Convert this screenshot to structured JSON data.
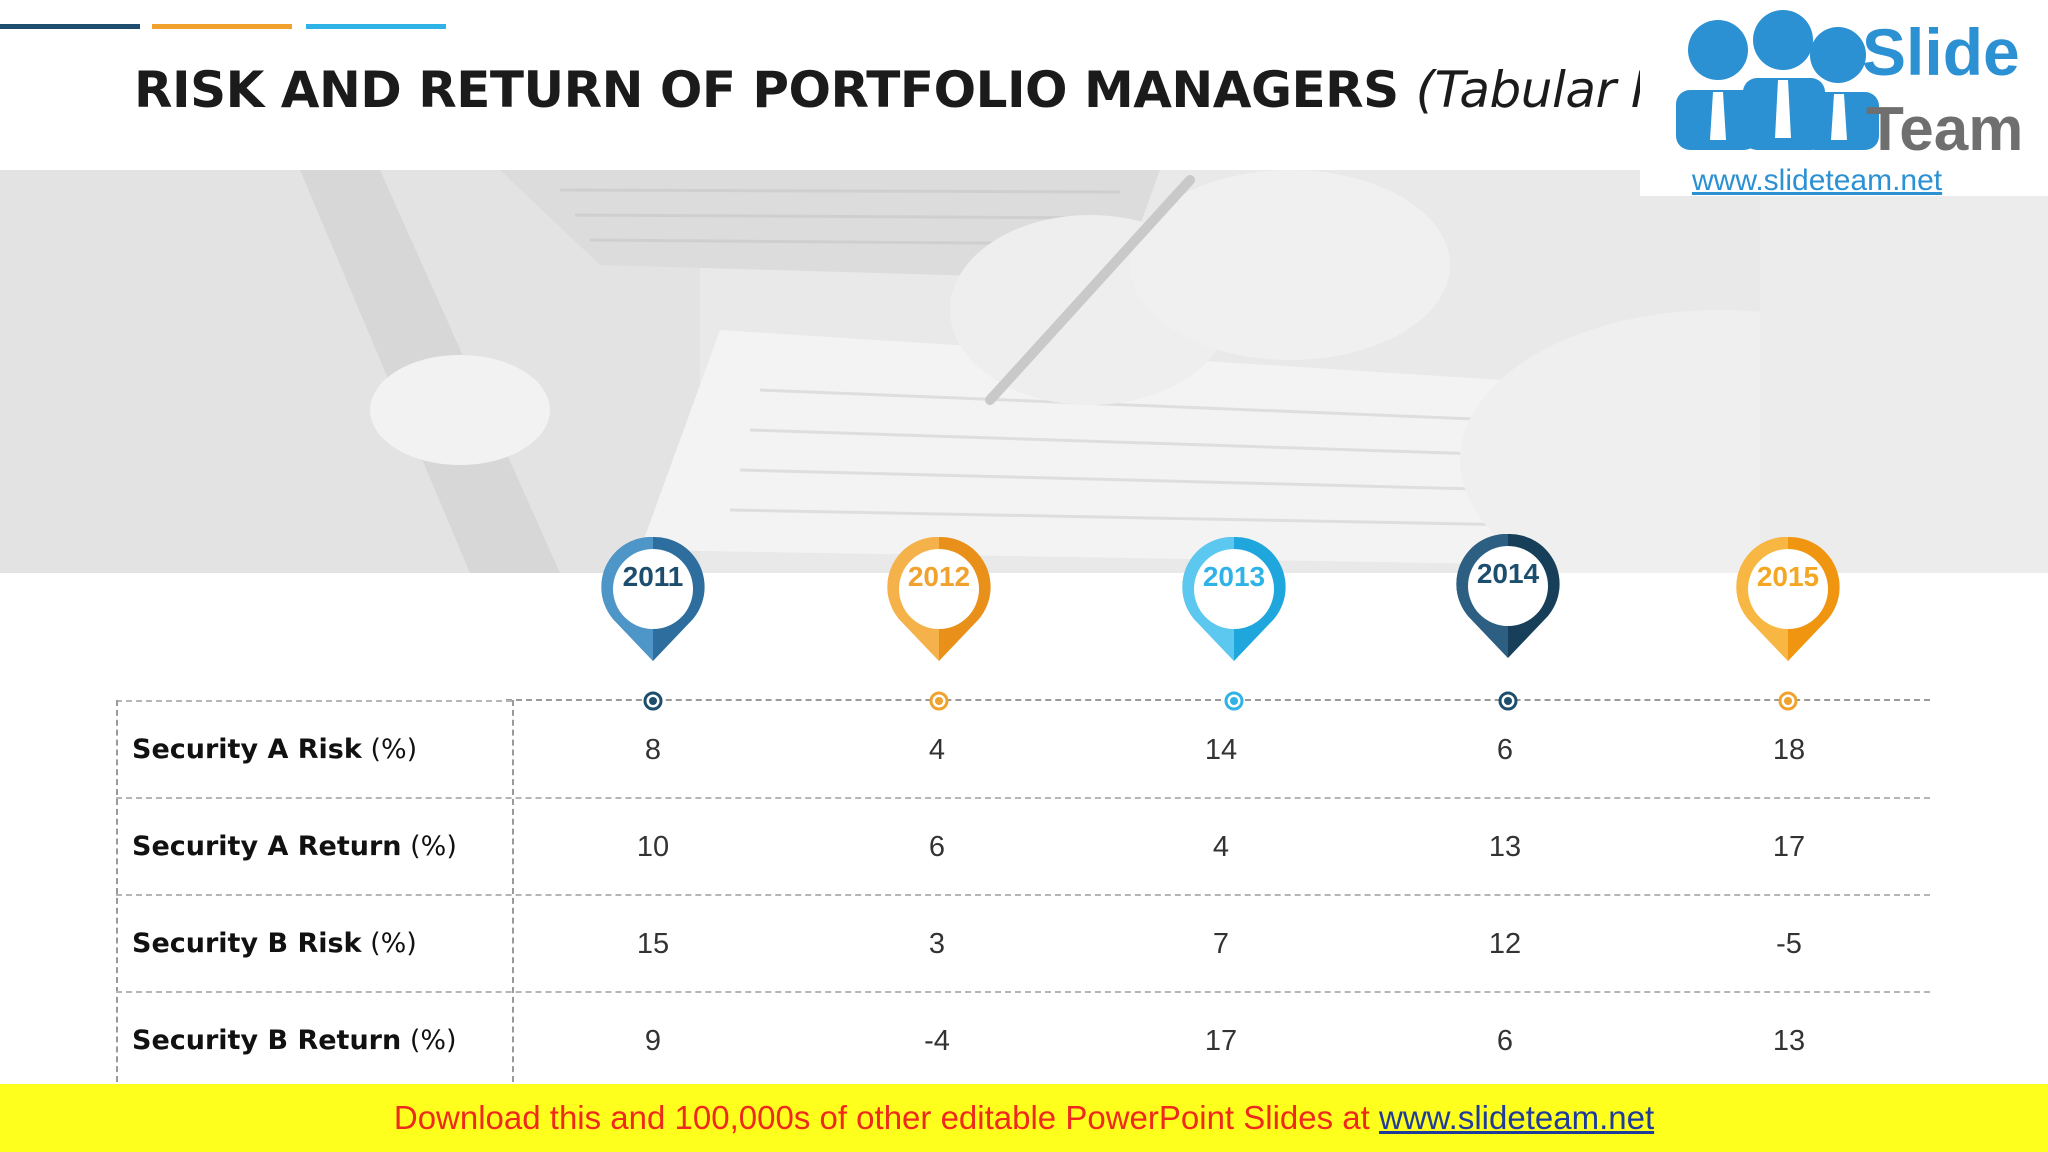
{
  "slide": {
    "title_main": "RISK AND RETURN OF PORTFOLIO MANAGERS",
    "title_sub": "(Tabular Form)"
  },
  "logo": {
    "word1": "Slide",
    "word2": "Team",
    "url": "www.slideteam.net"
  },
  "colors": {
    "dark_blue": "#1d4e6e",
    "mid_blue": "#3a8cc4",
    "orange": "#f0a12e",
    "light_blue": "#2fb3e6"
  },
  "years": [
    {
      "label": "2011",
      "color": "#2d6e9e"
    },
    {
      "label": "2012",
      "color": "#f0a12e"
    },
    {
      "label": "2013",
      "color": "#2fb3e6"
    },
    {
      "label": "2014",
      "color": "#1d4e6e"
    },
    {
      "label": "2015",
      "color": "#f5a623"
    }
  ],
  "table": {
    "rows": [
      {
        "label": "Security A Risk",
        "unit": "(%)",
        "values": [
          "8",
          "4",
          "14",
          "6",
          "18"
        ]
      },
      {
        "label": "Security A Return",
        "unit": "(%)",
        "values": [
          "10",
          "6",
          "4",
          "13",
          "17"
        ]
      },
      {
        "label": "Security B Risk",
        "unit": "(%)",
        "values": [
          "15",
          "3",
          "7",
          "12",
          "-5"
        ]
      },
      {
        "label": "Security B Return",
        "unit": "(%)",
        "values": [
          "9",
          "-4",
          "17",
          "6",
          "13"
        ]
      }
    ]
  },
  "banner": {
    "text": "Download this and 100,000s of other editable PowerPoint Slides at ",
    "link": "www.slideteam.net"
  }
}
